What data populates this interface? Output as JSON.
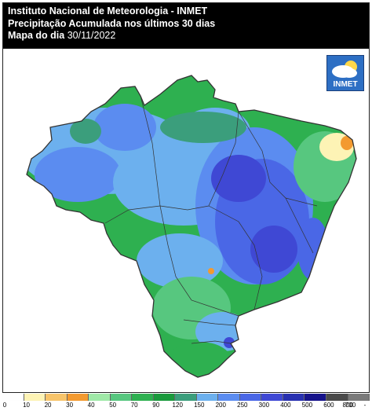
{
  "header": {
    "line1": "Instituto Nacional de Meteorologia - INMET",
    "line2": "Precipitação Acumulada nos últimos 30 dias",
    "line3_prefix": "Mapa do dia ",
    "line3_date": "30/11/2022"
  },
  "logo": {
    "text": "INMET"
  },
  "legend": {
    "colors": [
      "#fefefe",
      "#fdf3b5",
      "#f7c46a",
      "#f39a30",
      "#9fe8a7",
      "#57c77f",
      "#2eb050",
      "#1a9a3c",
      "#3b9e7c",
      "#6cb0ee",
      "#5b8cf0",
      "#4a67e6",
      "#3f48d4",
      "#2730b0",
      "#15128a",
      "#4a4a4a",
      "#7a7a7a"
    ],
    "labels": [
      "0",
      "10",
      "20",
      "30",
      "40",
      "50",
      "70",
      "90",
      "120",
      "150",
      "200",
      "250",
      "300",
      "400",
      "500",
      "600",
      "700",
      "800",
      "-"
    ]
  },
  "map": {
    "palette": {
      "outside": "#ffffff",
      "base_green": "#2eb050",
      "light_blue": "#6cb0ee",
      "blue": "#5b8cf0",
      "deep_blue": "#4a67e6",
      "dark_blue": "#3f48d4",
      "teal": "#3b9e7c",
      "pale_green": "#57c77f",
      "dark_green": "#1a9a3c",
      "yellow": "#fdf3b5",
      "orange": "#f39a30",
      "border": "#333333"
    }
  }
}
